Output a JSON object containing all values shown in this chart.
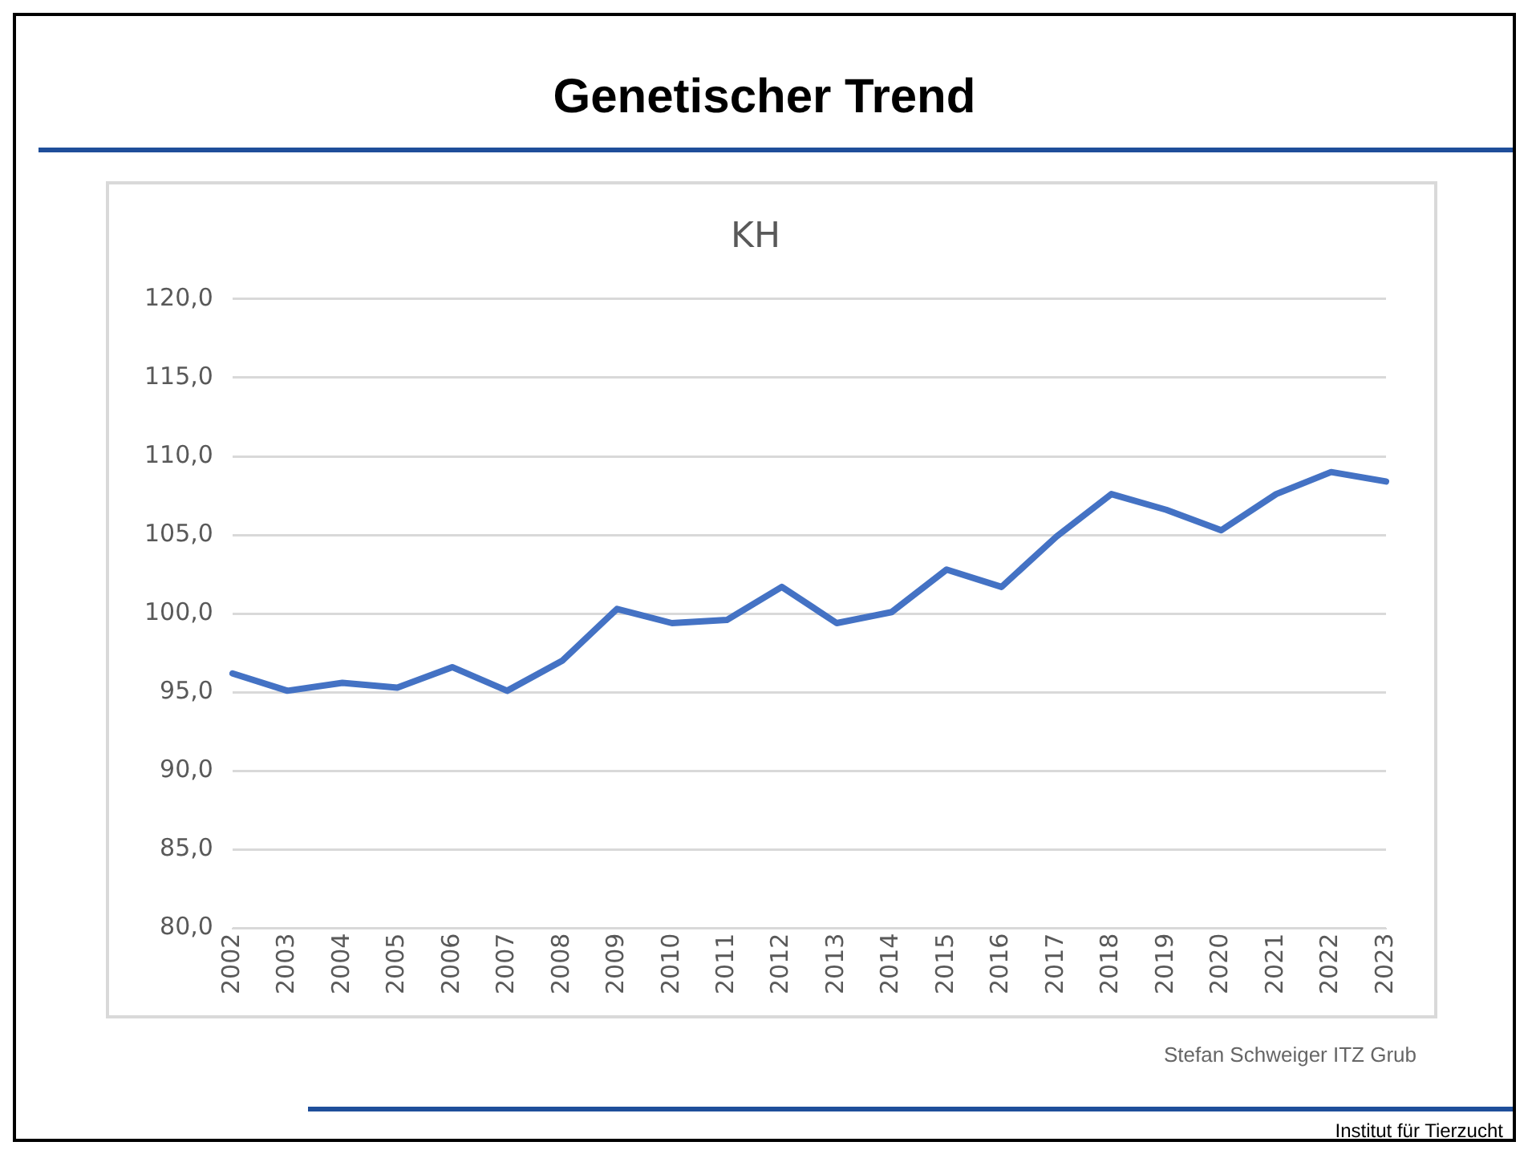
{
  "chart_data": {
    "type": "line",
    "title": "Genetischer Trend",
    "subtitle": "KH",
    "categories": [
      "2002",
      "2003",
      "2004",
      "2005",
      "2006",
      "2007",
      "2008",
      "2009",
      "2010",
      "2011",
      "2012",
      "2013",
      "2014",
      "2015",
      "2016",
      "2017",
      "2018",
      "2019",
      "2020",
      "2021",
      "2022",
      "2023"
    ],
    "series": [
      {
        "color": "#4472c4",
        "values": [
          96.2,
          95.1,
          95.6,
          95.3,
          96.6,
          95.1,
          97.0,
          100.3,
          99.4,
          99.6,
          101.7,
          99.4,
          100.1,
          102.8,
          101.7,
          104.9,
          107.6,
          106.6,
          105.3,
          107.6,
          109.0,
          108.4
        ]
      }
    ],
    "ylim": [
      80,
      120
    ],
    "yticks": [
      {
        "value": 80,
        "label": "80,0"
      },
      {
        "value": 85,
        "label": "85,0"
      },
      {
        "value": 90,
        "label": "90,0"
      },
      {
        "value": 95,
        "label": "95,0"
      },
      {
        "value": 100,
        "label": "100,0"
      },
      {
        "value": 105,
        "label": "105,0"
      },
      {
        "value": 110,
        "label": "110,0"
      },
      {
        "value": 115,
        "label": "115,0"
      },
      {
        "value": 120,
        "label": "120,0"
      }
    ],
    "grid": "y",
    "legend": false,
    "marker": "none",
    "line_style": "solid",
    "annotations": [
      "Stefan Schweiger ITZ Grub",
      "Institut für Tierzucht"
    ]
  }
}
